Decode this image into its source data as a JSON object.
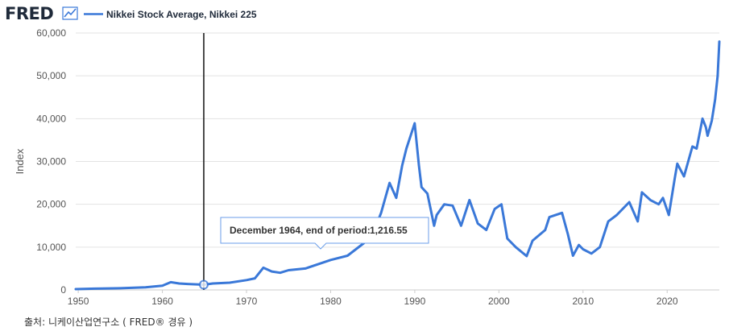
{
  "header": {
    "logo_text": "FRED",
    "legend_label": "Nikkei Stock Average, Nikkei 225"
  },
  "source_note": "출처: 니케이산업연구소 ( FRED® 경유 )",
  "tooltip": {
    "label": "December 1964, end of period:",
    "value": "1,216.55",
    "x_year": 1964.92
  },
  "colors": {
    "series": "#3a78d8",
    "grid": "#e3e3e3",
    "marker_line": "#111111",
    "tooltip_border": "#6b9ee8"
  },
  "chart_data": {
    "type": "line",
    "title": "",
    "xlabel": "",
    "ylabel": "Index",
    "xlim": [
      1949.7,
      2026.2
    ],
    "ylim": [
      0,
      60000
    ],
    "x_ticks": [
      1950,
      1960,
      1970,
      1980,
      1990,
      2000,
      2010,
      2020
    ],
    "x_tick_labels": [
      "1950",
      "1960",
      "1970",
      "1980",
      "1990",
      "2000",
      "2010",
      "2020"
    ],
    "y_ticks": [
      0,
      10000,
      20000,
      30000,
      40000,
      50000,
      60000
    ],
    "y_tick_labels": [
      "0",
      "10,000",
      "20,000",
      "30,000",
      "40,000",
      "50,000",
      "60,000"
    ],
    "grid": true,
    "legend": "top-left",
    "series": [
      {
        "name": "Nikkei Stock Average, Nikkei 225",
        "x": [
          1949.7,
          1952,
          1955,
          1958,
          1960,
          1961,
          1962,
          1963,
          1964.92,
          1966,
          1968,
          1970,
          1971,
          1972,
          1973,
          1974,
          1975,
          1977,
          1980,
          1982,
          1984,
          1985,
          1986,
          1987,
          1987.8,
          1988.5,
          1989,
          1989.99,
          1990.5,
          1990.8,
          1991.5,
          1992.3,
          1992.6,
          1993.5,
          1994.5,
          1995.5,
          1996.5,
          1997.5,
          1998.5,
          1999.5,
          2000.3,
          2001,
          2002,
          2003.3,
          2004,
          2005.5,
          2006,
          2007.5,
          2008.2,
          2008.8,
          2009.5,
          2010,
          2011,
          2012,
          2013,
          2014,
          2015.5,
          2016.5,
          2017,
          2018,
          2018.99,
          2019.5,
          2020.2,
          2020.9,
          2021.2,
          2022,
          2023,
          2023.5,
          2024.2,
          2024.6,
          2024.8,
          2025.3,
          2025.7,
          2026,
          2026.2
        ],
        "values": [
          180,
          300,
          400,
          600,
          1000,
          1800,
          1500,
          1400,
          1216.55,
          1500,
          1700,
          2300,
          2700,
          5200,
          4300,
          4000,
          4600,
          5000,
          7000,
          8000,
          11000,
          13000,
          18000,
          25000,
          21500,
          29000,
          33000,
          38915,
          29000,
          24000,
          22500,
          15000,
          17500,
          20000,
          19700,
          15000,
          21000,
          15500,
          14000,
          18900,
          20000,
          12000,
          10000,
          7900,
          11500,
          14000,
          17000,
          18000,
          13000,
          8000,
          10500,
          9500,
          8500,
          10000,
          16000,
          17500,
          20500,
          16000,
          22800,
          21000,
          20000,
          21500,
          17500,
          26000,
          29500,
          26500,
          33500,
          33000,
          40000,
          38000,
          36000,
          39500,
          44500,
          50000,
          58000
        ]
      }
    ]
  }
}
